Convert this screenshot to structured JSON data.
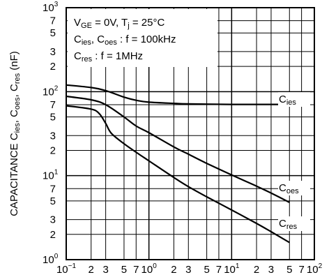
{
  "chart_data": {
    "type": "line",
    "title": "",
    "xscale": "log",
    "yscale": "log",
    "xlim": [
      0.1,
      100
    ],
    "ylim": [
      1,
      1000
    ],
    "grid": true,
    "x_tick_labels": [
      {
        "v": 0.1,
        "base": "10",
        "exp": "−1"
      },
      {
        "v": 0.2,
        "text": "2"
      },
      {
        "v": 0.3,
        "text": "3"
      },
      {
        "v": 0.5,
        "text": "5"
      },
      {
        "v": 0.7,
        "text": "7"
      },
      {
        "v": 1,
        "base": "10",
        "exp": "0"
      },
      {
        "v": 2,
        "text": "2"
      },
      {
        "v": 3,
        "text": "3"
      },
      {
        "v": 5,
        "text": "5"
      },
      {
        "v": 7,
        "text": "7"
      },
      {
        "v": 10,
        "base": "10",
        "exp": "1"
      },
      {
        "v": 20,
        "text": "2"
      },
      {
        "v": 30,
        "text": "3"
      },
      {
        "v": 50,
        "text": "5"
      },
      {
        "v": 70,
        "text": "7"
      },
      {
        "v": 100,
        "base": "10",
        "exp": "2"
      }
    ],
    "y_tick_labels": [
      {
        "v": 1,
        "base": "10",
        "exp": "0"
      },
      {
        "v": 2,
        "text": "2"
      },
      {
        "v": 3,
        "text": "3"
      },
      {
        "v": 5,
        "text": "5"
      },
      {
        "v": 7,
        "text": "7"
      },
      {
        "v": 10,
        "base": "10",
        "exp": "1"
      },
      {
        "v": 20,
        "text": "2"
      },
      {
        "v": 30,
        "text": "3"
      },
      {
        "v": 50,
        "text": "5"
      },
      {
        "v": 70,
        "text": "7"
      },
      {
        "v": 100,
        "base": "10",
        "exp": "2"
      },
      {
        "v": 200,
        "text": "2"
      },
      {
        "v": 300,
        "text": "3"
      },
      {
        "v": 500,
        "text": "5"
      },
      {
        "v": 700,
        "text": "7"
      },
      {
        "v": 1000,
        "base": "10",
        "exp": "3"
      }
    ],
    "ylabel": {
      "parts": [
        {
          "t": "CAPACITANCE C"
        },
        {
          "t": "ies",
          "sub": true
        },
        {
          "t": ", C"
        },
        {
          "t": "oes",
          "sub": true
        },
        {
          "t": ", C"
        },
        {
          "t": "res",
          "sub": true
        },
        {
          "t": " (nF)"
        }
      ]
    },
    "annotation": {
      "lines": [
        [
          {
            "t": "V"
          },
          {
            "t": "GE",
            "sub": true
          },
          {
            "t": " = 0V, T"
          },
          {
            "t": "j",
            "sub": true
          },
          {
            "t": " = 25°C"
          }
        ],
        [
          {
            "t": "C"
          },
          {
            "t": "ies",
            "sub": true
          },
          {
            "t": ", C"
          },
          {
            "t": "oes",
            "sub": true
          },
          {
            "t": " : f = 100kHz"
          }
        ],
        [
          {
            "t": "C"
          },
          {
            "t": "res",
            "sub": true
          },
          {
            "t": "        : f = 1MHz"
          }
        ]
      ]
    },
    "series": [
      {
        "name": "Cies",
        "label_parts": [
          {
            "t": "C"
          },
          {
            "t": "ies",
            "sub": true
          }
        ],
        "x": [
          0.1,
          0.2,
          0.3,
          0.5,
          0.7,
          1,
          2,
          3,
          5,
          10,
          20,
          50
        ],
        "y": [
          120,
          112,
          103,
          86,
          79,
          75,
          72.5,
          71.5,
          71,
          70.5,
          70.5,
          70.5
        ]
      },
      {
        "name": "Coes",
        "label_parts": [
          {
            "t": "C"
          },
          {
            "t": "oes",
            "sub": true
          }
        ],
        "x": [
          0.1,
          0.2,
          0.3,
          0.5,
          0.7,
          1,
          2,
          3,
          5,
          10,
          20,
          30,
          50
        ],
        "y": [
          88,
          80,
          70,
          50,
          39,
          32.5,
          22,
          18,
          14,
          10.2,
          7.5,
          6.2,
          4.8
        ]
      },
      {
        "name": "Cres",
        "label_parts": [
          {
            "t": "C"
          },
          {
            "t": "res",
            "sub": true
          }
        ],
        "x": [
          0.1,
          0.2,
          0.25,
          0.3,
          0.35,
          0.5,
          0.7,
          1,
          2,
          3,
          5,
          10,
          20,
          30,
          50
        ],
        "y": [
          68,
          62,
          55,
          42,
          32,
          24,
          19,
          15,
          9.5,
          7.4,
          5.6,
          3.9,
          2.7,
          2.15,
          1.6
        ]
      }
    ]
  }
}
